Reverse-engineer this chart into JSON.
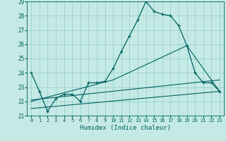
{
  "xlabel": "Humidex (Indice chaleur)",
  "xlim": [
    -0.5,
    23.5
  ],
  "ylim": [
    21,
    29
  ],
  "xticks": [
    0,
    1,
    2,
    3,
    4,
    5,
    6,
    7,
    8,
    9,
    10,
    11,
    12,
    13,
    14,
    15,
    16,
    17,
    18,
    19,
    20,
    21,
    22,
    23
  ],
  "yticks": [
    21,
    22,
    23,
    24,
    25,
    26,
    27,
    28,
    29
  ],
  "bg_color": "#c5eae6",
  "grid_color": "#8eccc7",
  "line_color": "#006060",
  "series": {
    "main": {
      "x": [
        0,
        1,
        2,
        3,
        4,
        5,
        6,
        7,
        8,
        9,
        10,
        11,
        12,
        13,
        14,
        15,
        16,
        17,
        18,
        19,
        20,
        21,
        22,
        23
      ],
      "y": [
        24.0,
        22.7,
        21.3,
        22.2,
        22.5,
        22.5,
        22.0,
        23.3,
        23.3,
        23.4,
        24.3,
        25.5,
        26.6,
        27.7,
        29.0,
        28.3,
        28.1,
        28.0,
        27.3,
        25.9,
        24.0,
        23.3,
        23.3,
        22.7
      ]
    },
    "line_upper": {
      "x": [
        0,
        10,
        19,
        23
      ],
      "y": [
        22.0,
        23.5,
        25.9,
        22.7
      ]
    },
    "line_mid": {
      "x": [
        0,
        23
      ],
      "y": [
        22.1,
        23.5
      ]
    },
    "line_lower": {
      "x": [
        0,
        23
      ],
      "y": [
        21.5,
        22.7
      ]
    }
  }
}
